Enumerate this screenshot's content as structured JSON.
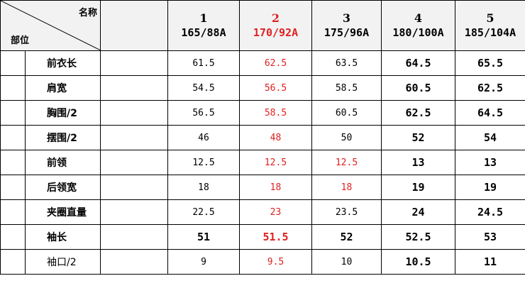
{
  "header": {
    "name_label": "名称",
    "part_label": "部位",
    "sizes": [
      {
        "num": "1",
        "code": "165/88A",
        "accent": false
      },
      {
        "num": "2",
        "code": "170/92A",
        "accent": true
      },
      {
        "num": "3",
        "code": "175/96A",
        "accent": false
      },
      {
        "num": "4",
        "code": "180/100A",
        "accent": false
      },
      {
        "num": "5",
        "code": "185/104A",
        "accent": false
      }
    ]
  },
  "rows": [
    {
      "part": "前衣长",
      "values": [
        "61.5",
        "62.5",
        "63.5",
        "64.5",
        "65.5"
      ],
      "red": [
        false,
        true,
        false,
        false,
        false
      ],
      "big": [
        false,
        false,
        false,
        true,
        true
      ]
    },
    {
      "part": "肩宽",
      "values": [
        "54.5",
        "56.5",
        "58.5",
        "60.5",
        "62.5"
      ],
      "red": [
        false,
        true,
        false,
        false,
        false
      ],
      "big": [
        false,
        false,
        false,
        true,
        true
      ]
    },
    {
      "part": "胸围/2",
      "values": [
        "56.5",
        "58.5",
        "60.5",
        "62.5",
        "64.5"
      ],
      "red": [
        false,
        true,
        false,
        false,
        false
      ],
      "big": [
        false,
        false,
        false,
        true,
        true
      ]
    },
    {
      "part": "摆围/2",
      "values": [
        "46",
        "48",
        "50",
        "52",
        "54"
      ],
      "red": [
        false,
        true,
        false,
        false,
        false
      ],
      "big": [
        false,
        false,
        false,
        true,
        true
      ]
    },
    {
      "part": "前领",
      "values": [
        "12.5",
        "12.5",
        "12.5",
        "13",
        "13"
      ],
      "red": [
        false,
        true,
        true,
        false,
        false
      ],
      "big": [
        false,
        false,
        false,
        true,
        true
      ]
    },
    {
      "part": "后领宽",
      "values": [
        "18",
        "18",
        "18",
        "19",
        "19"
      ],
      "red": [
        false,
        true,
        true,
        false,
        false
      ],
      "big": [
        false,
        false,
        false,
        true,
        true
      ]
    },
    {
      "part": "夹圈直量",
      "values": [
        "22.5",
        "23",
        "23.5",
        "24",
        "24.5"
      ],
      "red": [
        false,
        true,
        false,
        false,
        false
      ],
      "big": [
        false,
        false,
        false,
        true,
        true
      ]
    },
    {
      "part": "袖长",
      "values": [
        "51",
        "51.5",
        "52",
        "52.5",
        "53"
      ],
      "red": [
        false,
        true,
        false,
        false,
        false
      ],
      "big": [
        true,
        true,
        true,
        true,
        true
      ]
    },
    {
      "part": "袖口/2",
      "values": [
        "9",
        "9.5",
        "10",
        "10.5",
        "11"
      ],
      "red": [
        false,
        true,
        false,
        false,
        false
      ],
      "big": [
        false,
        false,
        false,
        true,
        true
      ],
      "plain": true
    }
  ],
  "colors": {
    "accent": "#e02020",
    "header_bg": "#f2f2f2",
    "grid": "#000000"
  }
}
